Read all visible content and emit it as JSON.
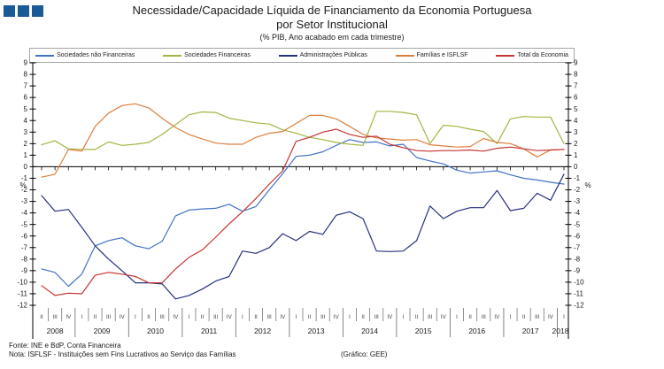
{
  "header": {
    "title_line1": "Necessidade/Capacidade Líquida de Financiamento da Economia Portuguesa",
    "title_line2": "por Setor Institucional",
    "subtitle": "(% PIB, Ano acabado em cada trimestre)",
    "logo_color": "#1a5a96"
  },
  "footer": {
    "source": "Fonte: INE e BdP, Conta Financeira",
    "note": "Nota: ISFLSF - Instituições sem Fins Lucrativos ao Serviço das Famílias",
    "credit": "(Gráfico: GEE)"
  },
  "chart_data": {
    "type": "line",
    "title": "Necessidade/Capacidade Líquida de Financiamento da Economia Portuguesa por Setor Institucional",
    "ylabel": "%",
    "ylim": [
      -12,
      9
    ],
    "y_tick_step": 1,
    "grid": false,
    "legend_position": "top",
    "axis_color": "#000000",
    "x_quarters": [
      "II",
      "III",
      "IV",
      "I",
      "II",
      "III",
      "IV",
      "I",
      "II",
      "III",
      "IV",
      "I",
      "II",
      "III",
      "IV",
      "I",
      "II",
      "III",
      "IV",
      "I",
      "II",
      "III",
      "IV",
      "I",
      "II",
      "III",
      "IV",
      "I",
      "II",
      "III",
      "IV",
      "I",
      "II",
      "III",
      "IV",
      "I",
      "II",
      "III",
      "IV",
      "I"
    ],
    "x_years": [
      {
        "label": "2008",
        "quarters": 3
      },
      {
        "label": "2009",
        "quarters": 4
      },
      {
        "label": "2010",
        "quarters": 4
      },
      {
        "label": "2011",
        "quarters": 4
      },
      {
        "label": "2012",
        "quarters": 4
      },
      {
        "label": "2013",
        "quarters": 4
      },
      {
        "label": "2014",
        "quarters": 4
      },
      {
        "label": "2015",
        "quarters": 4
      },
      {
        "label": "2016",
        "quarters": 4
      },
      {
        "label": "2017",
        "quarters": 4
      },
      {
        "label": "2018",
        "quarters": 1
      }
    ],
    "series": [
      {
        "name": "Sociedades não Financeiras",
        "color": "#4472c4",
        "values": [
          -8.85,
          -9.15,
          -10.35,
          -9.3,
          -6.85,
          -6.4,
          -6.15,
          -6.85,
          -7.1,
          -6.45,
          -4.25,
          -3.75,
          -3.65,
          -3.6,
          -3.25,
          -3.85,
          -3.45,
          -2.0,
          -0.6,
          0.9,
          1.0,
          1.3,
          1.85,
          2.35,
          2.1,
          2.15,
          1.8,
          1.95,
          0.8,
          0.5,
          0.25,
          -0.3,
          -0.55,
          -0.45,
          -0.35,
          -0.7,
          -1.0,
          -1.15,
          -1.35,
          -1.5
        ]
      },
      {
        "name": "Sociedades Financeiras",
        "color": "#a3b541",
        "values": [
          1.9,
          2.25,
          1.55,
          1.5,
          1.5,
          2.15,
          1.85,
          1.95,
          2.1,
          2.8,
          3.65,
          4.5,
          4.75,
          4.7,
          4.2,
          4.0,
          3.8,
          3.7,
          3.2,
          2.9,
          2.55,
          2.35,
          2.1,
          1.95,
          1.85,
          4.8,
          4.8,
          4.7,
          4.5,
          2.0,
          3.6,
          3.5,
          3.25,
          3.05,
          2.0,
          4.15,
          4.35,
          4.3,
          4.3,
          2.0
        ]
      },
      {
        "name": "Administrações Públicas",
        "color": "#26317e",
        "values": [
          -2.5,
          -3.85,
          -3.7,
          -5.25,
          -6.85,
          -8.0,
          -9.0,
          -10.05,
          -10.05,
          -10.15,
          -11.45,
          -11.15,
          -10.6,
          -9.9,
          -9.5,
          -7.3,
          -7.5,
          -7.0,
          -5.8,
          -6.4,
          -5.6,
          -5.85,
          -4.2,
          -3.9,
          -4.5,
          -7.3,
          -7.35,
          -7.3,
          -6.4,
          -3.4,
          -4.5,
          -3.85,
          -3.55,
          -3.55,
          -2.05,
          -3.8,
          -3.6,
          -2.3,
          -2.9,
          -0.65
        ]
      },
      {
        "name": "Famílias e ISFLSF",
        "color": "#dd7e3c",
        "values": [
          -0.9,
          -0.65,
          1.5,
          1.35,
          3.5,
          4.65,
          5.3,
          5.45,
          5.1,
          4.2,
          3.4,
          2.8,
          2.4,
          2.05,
          1.95,
          1.95,
          2.55,
          2.9,
          3.05,
          3.75,
          4.45,
          4.45,
          4.15,
          3.5,
          2.8,
          2.5,
          2.4,
          2.3,
          2.35,
          1.9,
          1.8,
          1.7,
          1.75,
          2.45,
          2.1,
          2.0,
          1.55,
          0.85,
          1.45,
          1.5
        ]
      },
      {
        "name": "Total da Economia",
        "color": "#c63434",
        "values": [
          -10.3,
          -11.15,
          -10.95,
          -11.0,
          -9.4,
          -9.15,
          -9.3,
          -9.5,
          -10.05,
          -10.05,
          -8.85,
          -7.85,
          -7.2,
          -6.1,
          -4.95,
          -3.9,
          -2.75,
          -1.5,
          -0.35,
          2.2,
          2.55,
          3.0,
          3.25,
          2.8,
          2.55,
          2.65,
          1.95,
          1.65,
          1.4,
          1.35,
          1.4,
          1.4,
          1.45,
          1.35,
          1.6,
          1.7,
          1.55,
          1.4,
          1.45,
          1.5
        ]
      }
    ]
  }
}
